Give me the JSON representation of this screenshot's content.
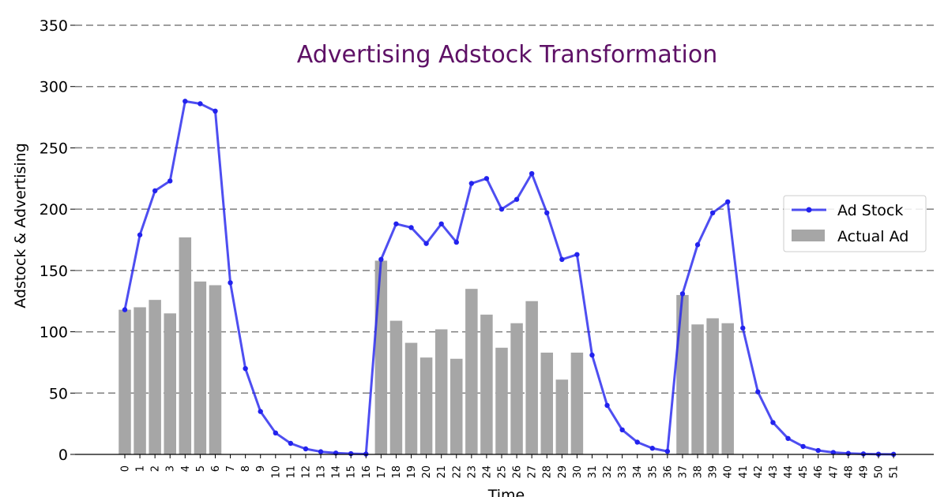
{
  "chart_data": {
    "type": "bar",
    "title": "Advertising Adstock Transformation",
    "xlabel": "Time",
    "ylabel": "Adstock & Advertising",
    "ylim": [
      0,
      350
    ],
    "yticks": [
      0,
      50,
      100,
      150,
      200,
      250,
      300,
      350
    ],
    "grid": "horizontal-dashed",
    "legend_position": "right",
    "x": [
      0,
      1,
      2,
      3,
      4,
      5,
      6,
      7,
      8,
      9,
      10,
      11,
      12,
      13,
      14,
      15,
      16,
      17,
      18,
      19,
      20,
      21,
      22,
      23,
      24,
      25,
      26,
      27,
      28,
      29,
      30,
      31,
      32,
      33,
      34,
      35,
      36,
      37,
      38,
      39,
      40,
      41,
      42,
      43,
      44,
      45,
      46,
      47,
      48,
      49,
      50,
      51
    ],
    "series": [
      {
        "name": "Ad Stock",
        "kind": "line",
        "color": "#2222ee",
        "values": [
          118,
          179,
          215,
          223,
          288,
          286,
          280,
          140,
          70,
          35,
          17.5,
          9,
          4.5,
          2.2,
          1.1,
          0.6,
          0.3,
          159,
          188,
          185,
          172,
          188,
          173,
          221,
          225,
          200,
          208,
          229,
          197,
          159,
          163,
          81,
          40,
          20,
          10,
          5,
          2.5,
          131,
          171,
          197,
          206,
          103,
          51,
          26,
          13,
          6.5,
          3.2,
          1.6,
          0.8,
          0.4,
          0.2,
          0.1
        ]
      },
      {
        "name": "Actual Ad",
        "kind": "bar",
        "color": "#a6a6a6",
        "values": [
          118,
          120,
          126,
          115,
          177,
          141,
          138,
          0,
          0,
          0,
          0,
          0,
          0,
          0,
          0,
          0,
          0,
          158,
          109,
          91,
          79,
          102,
          78,
          135,
          114,
          87,
          107,
          125,
          83,
          61,
          83,
          0,
          0,
          0,
          0,
          0,
          0,
          130,
          106,
          111,
          107,
          0,
          0,
          0,
          0,
          0,
          0,
          0,
          0,
          0,
          0,
          0
        ]
      }
    ]
  }
}
